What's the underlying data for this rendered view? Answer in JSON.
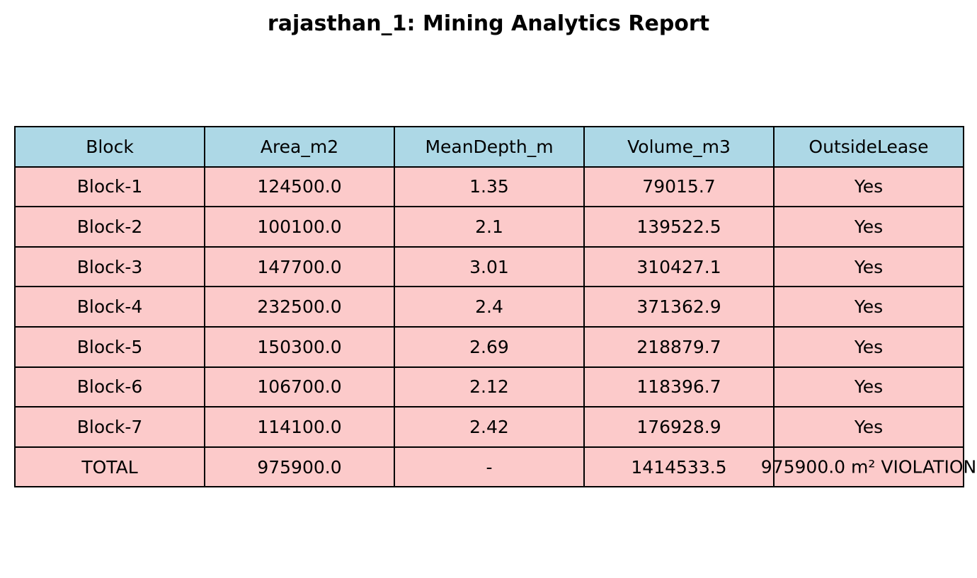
{
  "chart_data": {
    "type": "table",
    "title": "rajasthan_1: Mining Analytics Report",
    "columns": [
      "Block",
      "Area_m2",
      "MeanDepth_m",
      "Volume_m3",
      "OutsideLease"
    ],
    "rows": [
      [
        "Block-1",
        "124500.0",
        "1.35",
        "79015.7",
        "Yes"
      ],
      [
        "Block-2",
        "100100.0",
        "2.1",
        "139522.5",
        "Yes"
      ],
      [
        "Block-3",
        "147700.0",
        "3.01",
        "310427.1",
        "Yes"
      ],
      [
        "Block-4",
        "232500.0",
        "2.4",
        "371362.9",
        "Yes"
      ],
      [
        "Block-5",
        "150300.0",
        "2.69",
        "218879.7",
        "Yes"
      ],
      [
        "Block-6",
        "106700.0",
        "2.12",
        "118396.7",
        "Yes"
      ],
      [
        "Block-7",
        "114100.0",
        "2.42",
        "176928.9",
        "Yes"
      ],
      [
        "TOTAL",
        "975900.0",
        "-",
        "1414533.5",
        "975900.0 m² VIOLATION"
      ]
    ],
    "header_color": "#add8e6",
    "cell_color": "#fccaca"
  }
}
